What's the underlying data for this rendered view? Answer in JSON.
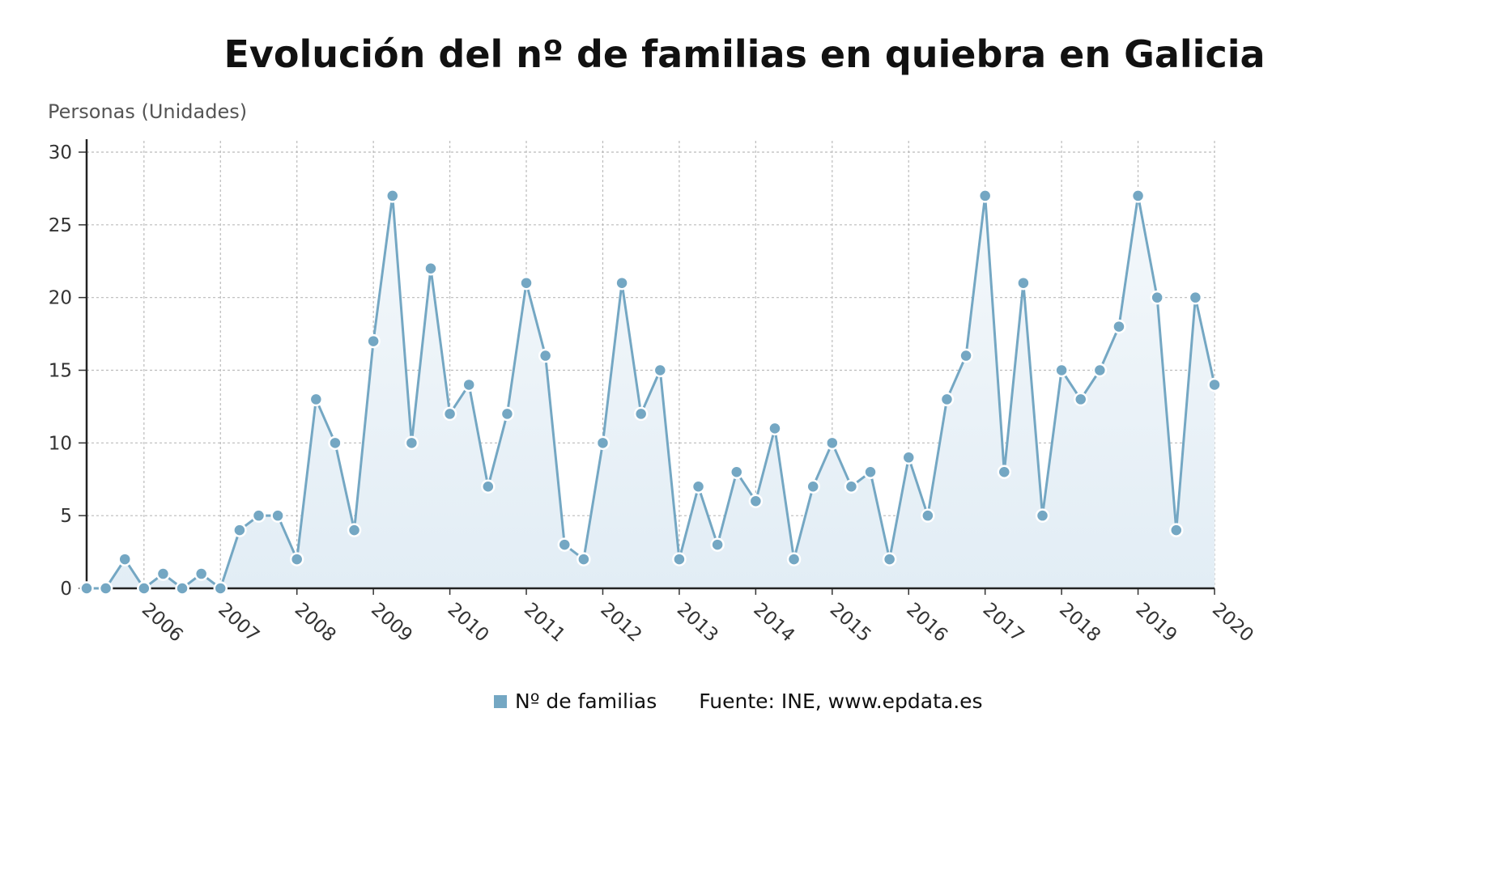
{
  "chart_data": {
    "type": "area",
    "title": "Evolución del nº de familias en quiebra en Galicia",
    "ylabel": "Personas (Unidades)",
    "xlabel": "",
    "ylim": [
      0,
      30
    ],
    "yticks": [
      0,
      5,
      10,
      15,
      20,
      25,
      30
    ],
    "x_tick_labels": [
      "2006",
      "2007",
      "2008",
      "2009",
      "2010",
      "2011",
      "2012",
      "2013",
      "2014",
      "2015",
      "2016",
      "2017",
      "2018",
      "2019",
      "2020"
    ],
    "grid": true,
    "legend_position": "bottom",
    "series": [
      {
        "name": "Nº de familias",
        "color": "#74a7c3",
        "values": [
          0,
          0,
          2,
          0,
          1,
          0,
          1,
          0,
          4,
          5,
          5,
          2,
          13,
          10,
          4,
          17,
          27,
          10,
          22,
          12,
          14,
          7,
          12,
          21,
          16,
          3,
          2,
          10,
          21,
          12,
          15,
          2,
          7,
          3,
          8,
          6,
          11,
          2,
          7,
          10,
          7,
          8,
          2,
          9,
          5,
          13,
          16,
          27,
          8,
          21,
          5,
          15,
          13,
          15,
          18,
          27,
          20,
          4,
          20,
          14
        ]
      }
    ]
  },
  "legend": {
    "source": "Fuente: INE, www.epdata.es"
  }
}
